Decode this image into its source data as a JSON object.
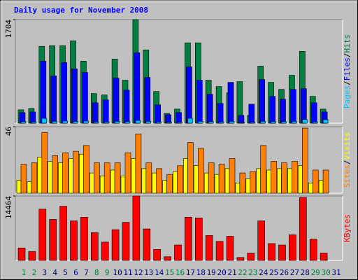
{
  "chart_data": [
    {
      "type": "bar",
      "title": "Daily usage for November 2008",
      "categories": [
        "1",
        "2",
        "3",
        "4",
        "5",
        "6",
        "7",
        "8",
        "9",
        "10",
        "11",
        "12",
        "13",
        "14",
        "15",
        "16",
        "17",
        "18",
        "19",
        "20",
        "21",
        "22",
        "23",
        "24",
        "25",
        "26",
        "27",
        "28",
        "29",
        "30",
        "31"
      ],
      "ylim": [
        0,
        1704
      ],
      "yticks": [
        1704
      ],
      "legend_separator": "/",
      "series": [
        {
          "name": "Pages",
          "color": "#00c0ff",
          "values": [
            25,
            20,
            80,
            30,
            35,
            30,
            35,
            20,
            20,
            30,
            25,
            45,
            30,
            20,
            15,
            15,
            80,
            30,
            25,
            20,
            30,
            10,
            15,
            30,
            25,
            25,
            30,
            60,
            20,
            60,
            null
          ]
        },
        {
          "name": "Files",
          "color": "#0000ff",
          "values": [
            174,
            185,
            1020,
            777,
            997,
            893,
            835,
            336,
            383,
            742,
            545,
            1159,
            753,
            301,
            139,
            174,
            927,
            707,
            475,
            325,
            672,
            128,
            313,
            719,
            441,
            394,
            556,
            568,
            336,
            185,
            null
          ]
        },
        {
          "name": "Hits",
          "color": "#008040",
          "values": [
            220,
            243,
            1264,
            1275,
            1275,
            1356,
            1020,
            487,
            464,
            1055,
            707,
            1704,
            1206,
            522,
            162,
            232,
            1322,
            1322,
            707,
            603,
            499,
            684,
            128,
            939,
            672,
            556,
            788,
            1182,
            441,
            232,
            null
          ]
        }
      ]
    },
    {
      "type": "bar",
      "ylim": [
        0,
        46
      ],
      "yticks": [
        46
      ],
      "legend_separator": "/",
      "series": [
        {
          "name": "Sites",
          "color": "#ff8000",
          "values": [
            20,
            21,
            42,
            26,
            28,
            29,
            33,
            21,
            21,
            21,
            28,
            41,
            21,
            17,
            13,
            19,
            35,
            31,
            21,
            20,
            24,
            14,
            15,
            33,
            22,
            21,
            22,
            45,
            16,
            16,
            null
          ]
        },
        {
          "name": "Visits",
          "color": "#ffff00",
          "values": [
            9,
            8,
            25,
            22,
            21,
            24,
            27,
            14,
            12,
            16,
            12,
            24,
            17,
            14,
            9,
            15,
            24,
            19,
            14,
            13,
            17,
            7,
            10,
            17,
            16,
            17,
            17,
            19,
            7,
            9,
            null
          ]
        }
      ]
    },
    {
      "type": "bar",
      "categories": [
        "1",
        "2",
        "3",
        "4",
        "5",
        "6",
        "7",
        "8",
        "9",
        "10",
        "11",
        "12",
        "13",
        "14",
        "15",
        "16",
        "17",
        "18",
        "19",
        "20",
        "21",
        "22",
        "23",
        "24",
        "25",
        "26",
        "27",
        "28",
        "29",
        "30",
        "31"
      ],
      "category_colors": [
        "#008040",
        "#008040",
        "#000080",
        "#000080",
        "#000080",
        "#000080",
        "#000080",
        "#008040",
        "#008040",
        "#000080",
        "#000080",
        "#000080",
        "#000080",
        "#000080",
        "#008040",
        "#008040",
        "#000080",
        "#000080",
        "#000080",
        "#000080",
        "#000080",
        "#008040",
        "#008040",
        "#000080",
        "#000080",
        "#000080",
        "#000080",
        "#000080",
        "#008040",
        "#008040",
        "#000080"
      ],
      "ylim": [
        0,
        14464
      ],
      "yticks": [
        14464
      ],
      "series": [
        {
          "name": "KBytes",
          "color": "#ff0000",
          "values": [
            2794,
            1972,
            11506,
            9205,
            12163,
            8876,
            9698,
            6246,
            4109,
            6904,
            8547,
            14464,
            7068,
            2465,
            822,
            3452,
            9698,
            9533,
            5589,
            4273,
            5424,
            658,
            1644,
            8876,
            3780,
            3452,
            5753,
            14135,
            4766,
            1644,
            null
          ]
        }
      ]
    }
  ]
}
